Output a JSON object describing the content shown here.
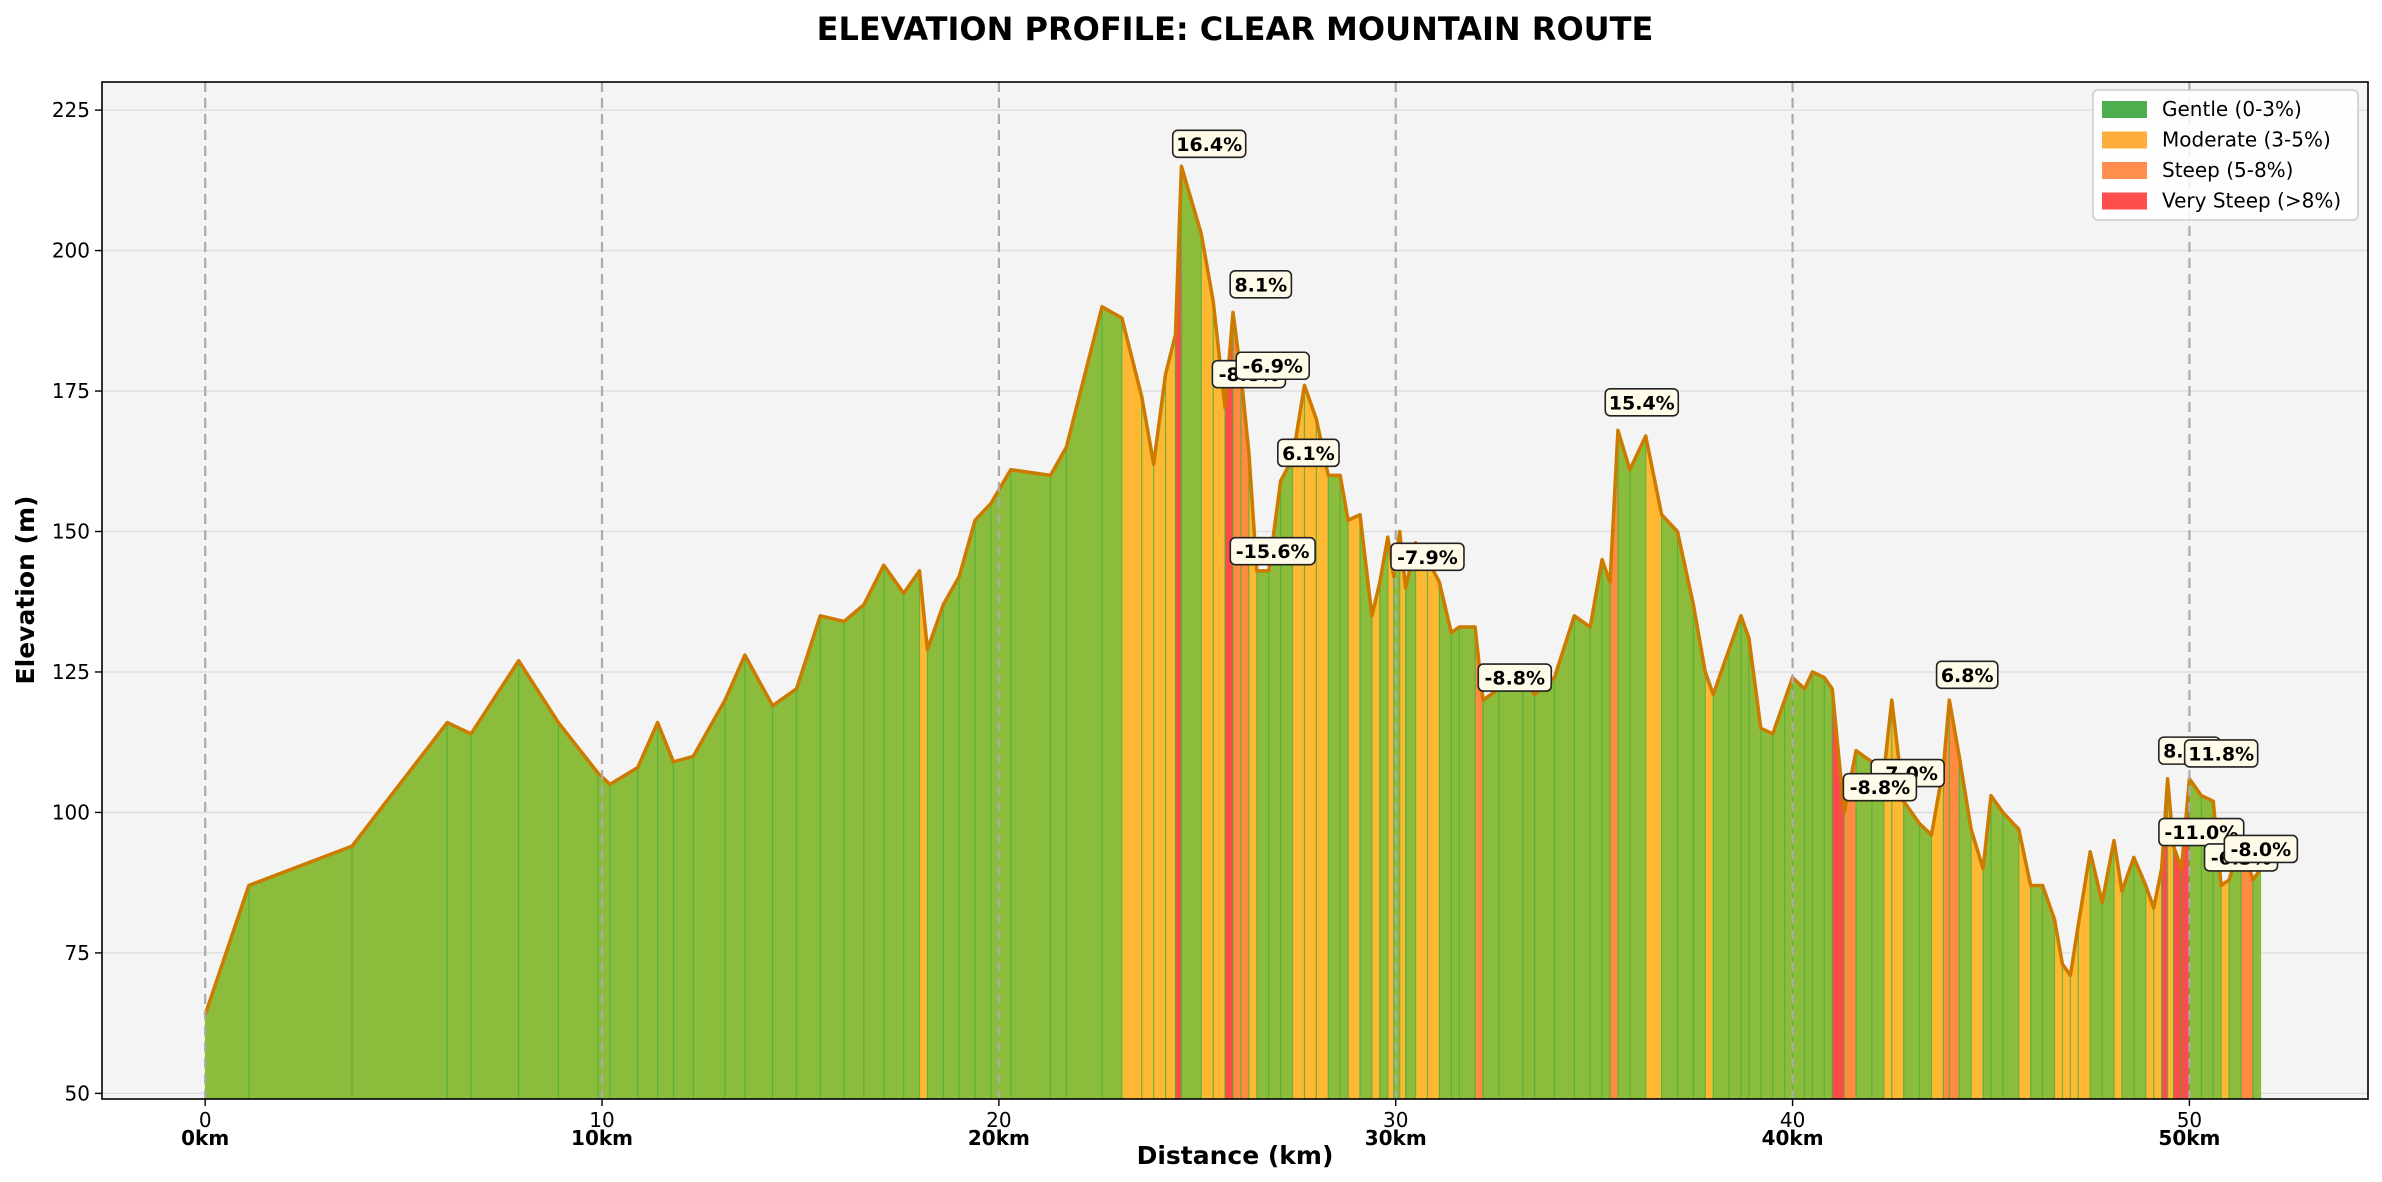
{
  "chart_data": {
    "type": "area",
    "title": "ELEVATION PROFILE: CLEAR MOUNTAIN ROUTE",
    "xlabel": "Distance (km)",
    "ylabel": "Elevation (m)",
    "xlim": [
      -2.6,
      54.5
    ],
    "ylim": [
      49,
      230
    ],
    "yticks": [
      50,
      75,
      100,
      125,
      150,
      175,
      200,
      225
    ],
    "xticks": [
      0,
      10,
      20,
      30,
      40,
      50
    ],
    "xtick_labels": [
      "0",
      "10",
      "20",
      "30",
      "40",
      "50"
    ],
    "km_markers": [
      0,
      10,
      20,
      30,
      40,
      50
    ],
    "km_marker_labels": [
      "0km",
      "10km",
      "20km",
      "30km",
      "40km",
      "50km"
    ],
    "grid": true,
    "legend_position": "top-right",
    "colors": {
      "gentle": "#8bbc3c",
      "moderate": "#ffb833",
      "steep": "#ff8a40",
      "very_steep": "#ff4a4a",
      "profile_line": "#cc7a00",
      "plot_bg": "#f4f4f4"
    },
    "legend": [
      {
        "label": "Gentle (0-3%)",
        "color": "#44aa44"
      },
      {
        "label": "Moderate (3-5%)",
        "color": "#ffaa33"
      },
      {
        "label": "Steep (5-8%)",
        "color": "#ff8844"
      },
      {
        "label": "Very Steep (>8%)",
        "color": "#ff4444"
      }
    ],
    "profile": [
      [
        0.0,
        64,
        "g"
      ],
      [
        1.1,
        87,
        "g"
      ],
      [
        3.7,
        94,
        "g"
      ],
      [
        6.1,
        116,
        "g"
      ],
      [
        6.7,
        114,
        "g"
      ],
      [
        7.9,
        127,
        "g"
      ],
      [
        8.9,
        116,
        "g"
      ],
      [
        9.9,
        107,
        "g"
      ],
      [
        10.2,
        105,
        "g"
      ],
      [
        10.9,
        108,
        "g"
      ],
      [
        11.4,
        116,
        "g"
      ],
      [
        11.8,
        109,
        "g"
      ],
      [
        12.3,
        110,
        "g"
      ],
      [
        13.1,
        120,
        "g"
      ],
      [
        13.6,
        128,
        "g"
      ],
      [
        14.3,
        119,
        "g"
      ],
      [
        14.9,
        122,
        "g"
      ],
      [
        15.5,
        135,
        "g"
      ],
      [
        16.1,
        134,
        "g"
      ],
      [
        16.6,
        137,
        "g"
      ],
      [
        17.1,
        144,
        "g"
      ],
      [
        17.6,
        139,
        "g"
      ],
      [
        18.0,
        143,
        "m"
      ],
      [
        18.2,
        129,
        "g"
      ],
      [
        18.6,
        137,
        "g"
      ],
      [
        19.0,
        142,
        "g"
      ],
      [
        19.4,
        152,
        "g"
      ],
      [
        19.8,
        155,
        "g"
      ],
      [
        20.3,
        161,
        "g"
      ],
      [
        21.3,
        160,
        "g"
      ],
      [
        21.7,
        165,
        "g"
      ],
      [
        22.6,
        190,
        "g"
      ],
      [
        23.1,
        188,
        "m"
      ],
      [
        23.6,
        174,
        "m"
      ],
      [
        23.9,
        162,
        "m"
      ],
      [
        24.2,
        178,
        "m"
      ],
      [
        24.45,
        185,
        "v"
      ],
      [
        24.6,
        215,
        "g"
      ],
      [
        25.1,
        203,
        "m"
      ],
      [
        25.4,
        191,
        "m"
      ],
      [
        25.7,
        172,
        "v"
      ],
      [
        25.9,
        189,
        "s"
      ],
      [
        26.1,
        178,
        "s"
      ],
      [
        26.3,
        164,
        "m"
      ],
      [
        26.5,
        143,
        "g"
      ],
      [
        26.8,
        143,
        "g"
      ],
      [
        27.1,
        159,
        "g"
      ],
      [
        27.4,
        163,
        "m"
      ],
      [
        27.7,
        176,
        "m"
      ],
      [
        28.0,
        170,
        "m"
      ],
      [
        28.3,
        160,
        "g"
      ],
      [
        28.6,
        160,
        "g"
      ],
      [
        28.8,
        152,
        "m"
      ],
      [
        29.1,
        153,
        "g"
      ],
      [
        29.4,
        135,
        "m"
      ],
      [
        29.6,
        141,
        "g"
      ],
      [
        29.8,
        149,
        "m"
      ],
      [
        29.95,
        142,
        "g"
      ],
      [
        30.1,
        150,
        "m"
      ],
      [
        30.25,
        140,
        "g"
      ],
      [
        30.5,
        148,
        "m"
      ],
      [
        30.8,
        145,
        "m"
      ],
      [
        31.1,
        141,
        "g"
      ],
      [
        31.4,
        132,
        "g"
      ],
      [
        31.6,
        133,
        "g"
      ],
      [
        32.0,
        133,
        "s"
      ],
      [
        32.2,
        120,
        "g"
      ],
      [
        32.6,
        122,
        "g"
      ],
      [
        33.2,
        124,
        "g"
      ],
      [
        33.5,
        121,
        "g"
      ],
      [
        34.0,
        124,
        "g"
      ],
      [
        34.5,
        135,
        "g"
      ],
      [
        34.9,
        133,
        "g"
      ],
      [
        35.2,
        145,
        "g"
      ],
      [
        35.4,
        141,
        "s"
      ],
      [
        35.6,
        168,
        "g"
      ],
      [
        35.9,
        161,
        "g"
      ],
      [
        36.3,
        167,
        "m"
      ],
      [
        36.7,
        153,
        "g"
      ],
      [
        37.1,
        150,
        "g"
      ],
      [
        37.5,
        137,
        "g"
      ],
      [
        37.8,
        125,
        "m"
      ],
      [
        38.0,
        121,
        "g"
      ],
      [
        38.4,
        129,
        "g"
      ],
      [
        38.7,
        135,
        "g"
      ],
      [
        38.9,
        131,
        "g"
      ],
      [
        39.2,
        115,
        "g"
      ],
      [
        39.5,
        114,
        "g"
      ],
      [
        39.8,
        120,
        "g"
      ],
      [
        40.0,
        124,
        "g"
      ],
      [
        40.3,
        122,
        "g"
      ],
      [
        40.5,
        125,
        "g"
      ],
      [
        40.8,
        124,
        "g"
      ],
      [
        41.0,
        122,
        "v"
      ],
      [
        41.3,
        100,
        "s"
      ],
      [
        41.6,
        111,
        "g"
      ],
      [
        42.0,
        109,
        "g"
      ],
      [
        42.3,
        107,
        "m"
      ],
      [
        42.5,
        120,
        "m"
      ],
      [
        42.8,
        102,
        "g"
      ],
      [
        43.2,
        98,
        "g"
      ],
      [
        43.5,
        96,
        "m"
      ],
      [
        43.8,
        108,
        "s"
      ],
      [
        43.95,
        120,
        "s"
      ],
      [
        44.2,
        110,
        "g"
      ],
      [
        44.5,
        97,
        "m"
      ],
      [
        44.8,
        90,
        "g"
      ],
      [
        45.0,
        103,
        "g"
      ],
      [
        45.3,
        100,
        "g"
      ],
      [
        45.7,
        97,
        "m"
      ],
      [
        46.0,
        87,
        "g"
      ],
      [
        46.3,
        87,
        "g"
      ],
      [
        46.6,
        81,
        "m"
      ],
      [
        46.8,
        73,
        "m"
      ],
      [
        47.0,
        71,
        "m"
      ],
      [
        47.2,
        80,
        "m"
      ],
      [
        47.5,
        93,
        "g"
      ],
      [
        47.8,
        84,
        "g"
      ],
      [
        48.1,
        95,
        "m"
      ],
      [
        48.3,
        86,
        "g"
      ],
      [
        48.6,
        92,
        "g"
      ],
      [
        48.9,
        87,
        "m"
      ],
      [
        49.1,
        83,
        "m"
      ],
      [
        49.3,
        90,
        "v"
      ],
      [
        49.45,
        106,
        "m"
      ],
      [
        49.6,
        94,
        "v"
      ],
      [
        49.8,
        90,
        "v"
      ],
      [
        50.0,
        106,
        "g"
      ],
      [
        50.3,
        103,
        "g"
      ],
      [
        50.6,
        102,
        "g"
      ],
      [
        50.8,
        87,
        "m"
      ],
      [
        51.0,
        88,
        "g"
      ],
      [
        51.3,
        95,
        "s"
      ],
      [
        51.6,
        88,
        "g"
      ],
      [
        51.8,
        90,
        "g"
      ]
    ],
    "grade_labels": [
      {
        "text": "16.4%",
        "x": 25.3,
        "y": 219
      },
      {
        "text": "8.1%",
        "x": 26.6,
        "y": 194
      },
      {
        "text": "-8.8%",
        "x": 26.3,
        "y": 178
      },
      {
        "text": "-6.9%",
        "x": 26.9,
        "y": 179.5
      },
      {
        "text": "6.1%",
        "x": 27.8,
        "y": 164
      },
      {
        "text": "-15.6%",
        "x": 26.9,
        "y": 146.5
      },
      {
        "text": "-7.9%",
        "x": 30.8,
        "y": 145.5
      },
      {
        "text": "15.4%",
        "x": 36.2,
        "y": 173
      },
      {
        "text": "-8.8%",
        "x": 33.0,
        "y": 124
      },
      {
        "text": "6.8%",
        "x": 44.4,
        "y": 124.5
      },
      {
        "text": "-7.0%",
        "x": 42.9,
        "y": 107
      },
      {
        "text": "-8.8%",
        "x": 42.2,
        "y": 104.5
      },
      {
        "text": "8.1%",
        "x": 50.0,
        "y": 111
      },
      {
        "text": "11.8%",
        "x": 50.8,
        "y": 110.5
      },
      {
        "text": "-11.0%",
        "x": 50.3,
        "y": 96.5
      },
      {
        "text": "-6.3%",
        "x": 51.3,
        "y": 92
      },
      {
        "text": "-8.0%",
        "x": 51.8,
        "y": 93.5
      }
    ]
  }
}
